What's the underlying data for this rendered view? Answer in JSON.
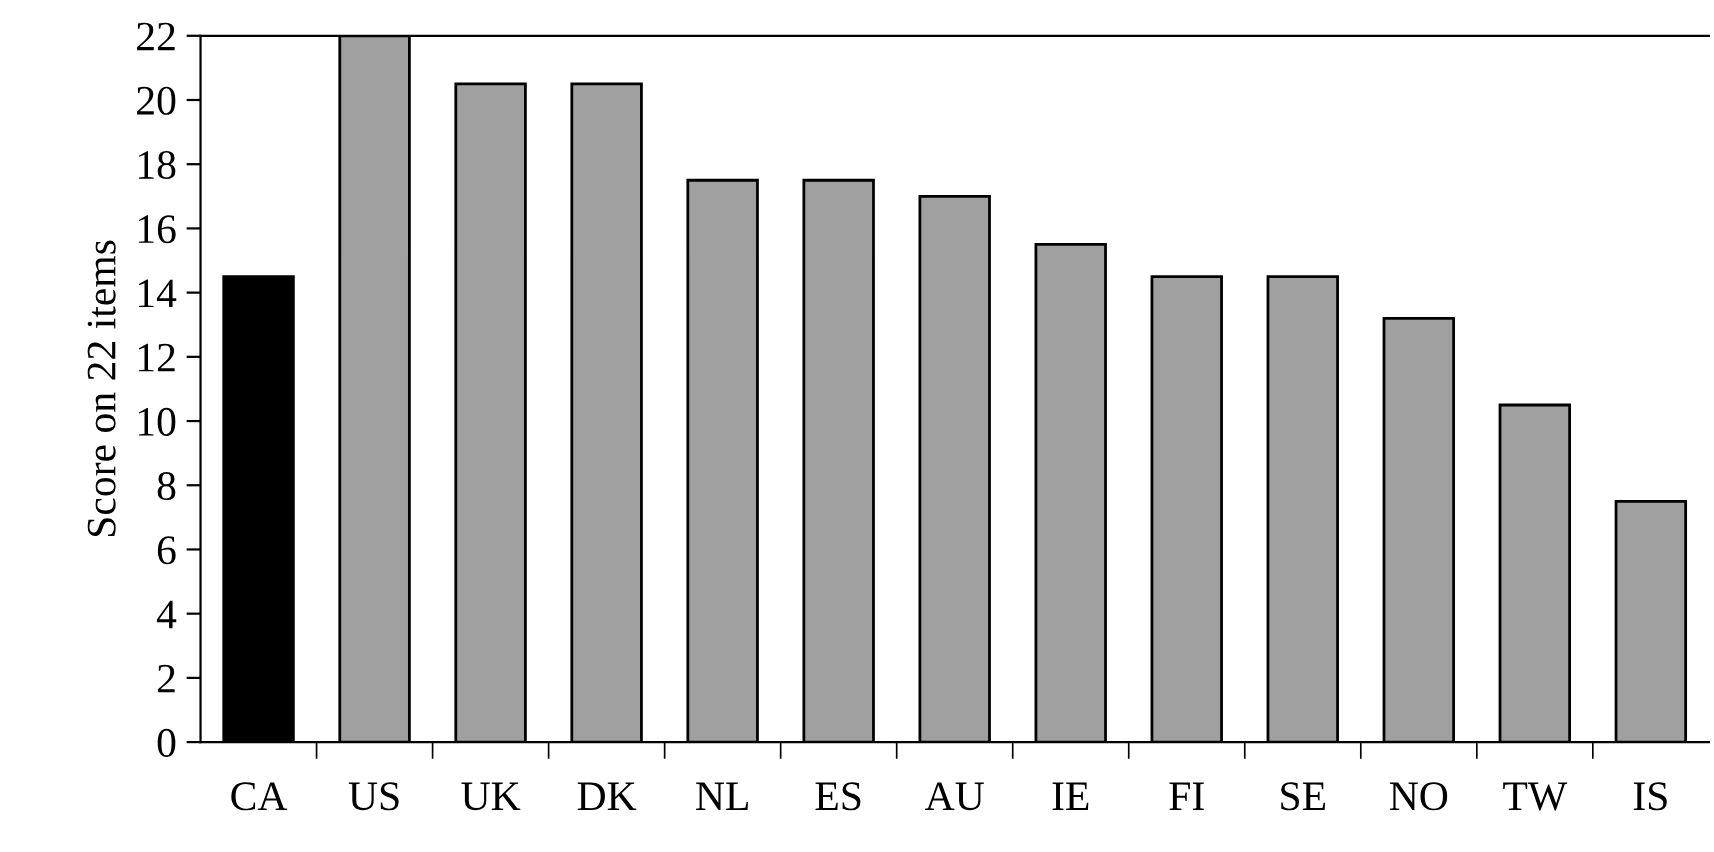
{
  "chart_data": {
    "type": "bar",
    "ylabel": "Score on 22 items",
    "categories": [
      "CA",
      "US",
      "UK",
      "DK",
      "NL",
      "ES",
      "AU",
      "IE",
      "FI",
      "SE",
      "NO",
      "TW",
      "IS"
    ],
    "values": [
      14.5,
      22,
      20.5,
      20.5,
      17.5,
      17.5,
      17,
      15.5,
      14.5,
      14.5,
      13.2,
      10.5,
      7.5
    ],
    "colors": [
      "#000000",
      "#a0a0a0",
      "#a0a0a0",
      "#a0a0a0",
      "#a0a0a0",
      "#a0a0a0",
      "#a0a0a0",
      "#a0a0a0",
      "#a0a0a0",
      "#a0a0a0",
      "#a0a0a0",
      "#a0a0a0",
      "#a0a0a0"
    ],
    "ylim": [
      0,
      22
    ],
    "yticks": [
      0,
      2,
      4,
      6,
      8,
      10,
      12,
      14,
      16,
      18,
      20,
      22
    ],
    "grid": false,
    "legend": false
  }
}
